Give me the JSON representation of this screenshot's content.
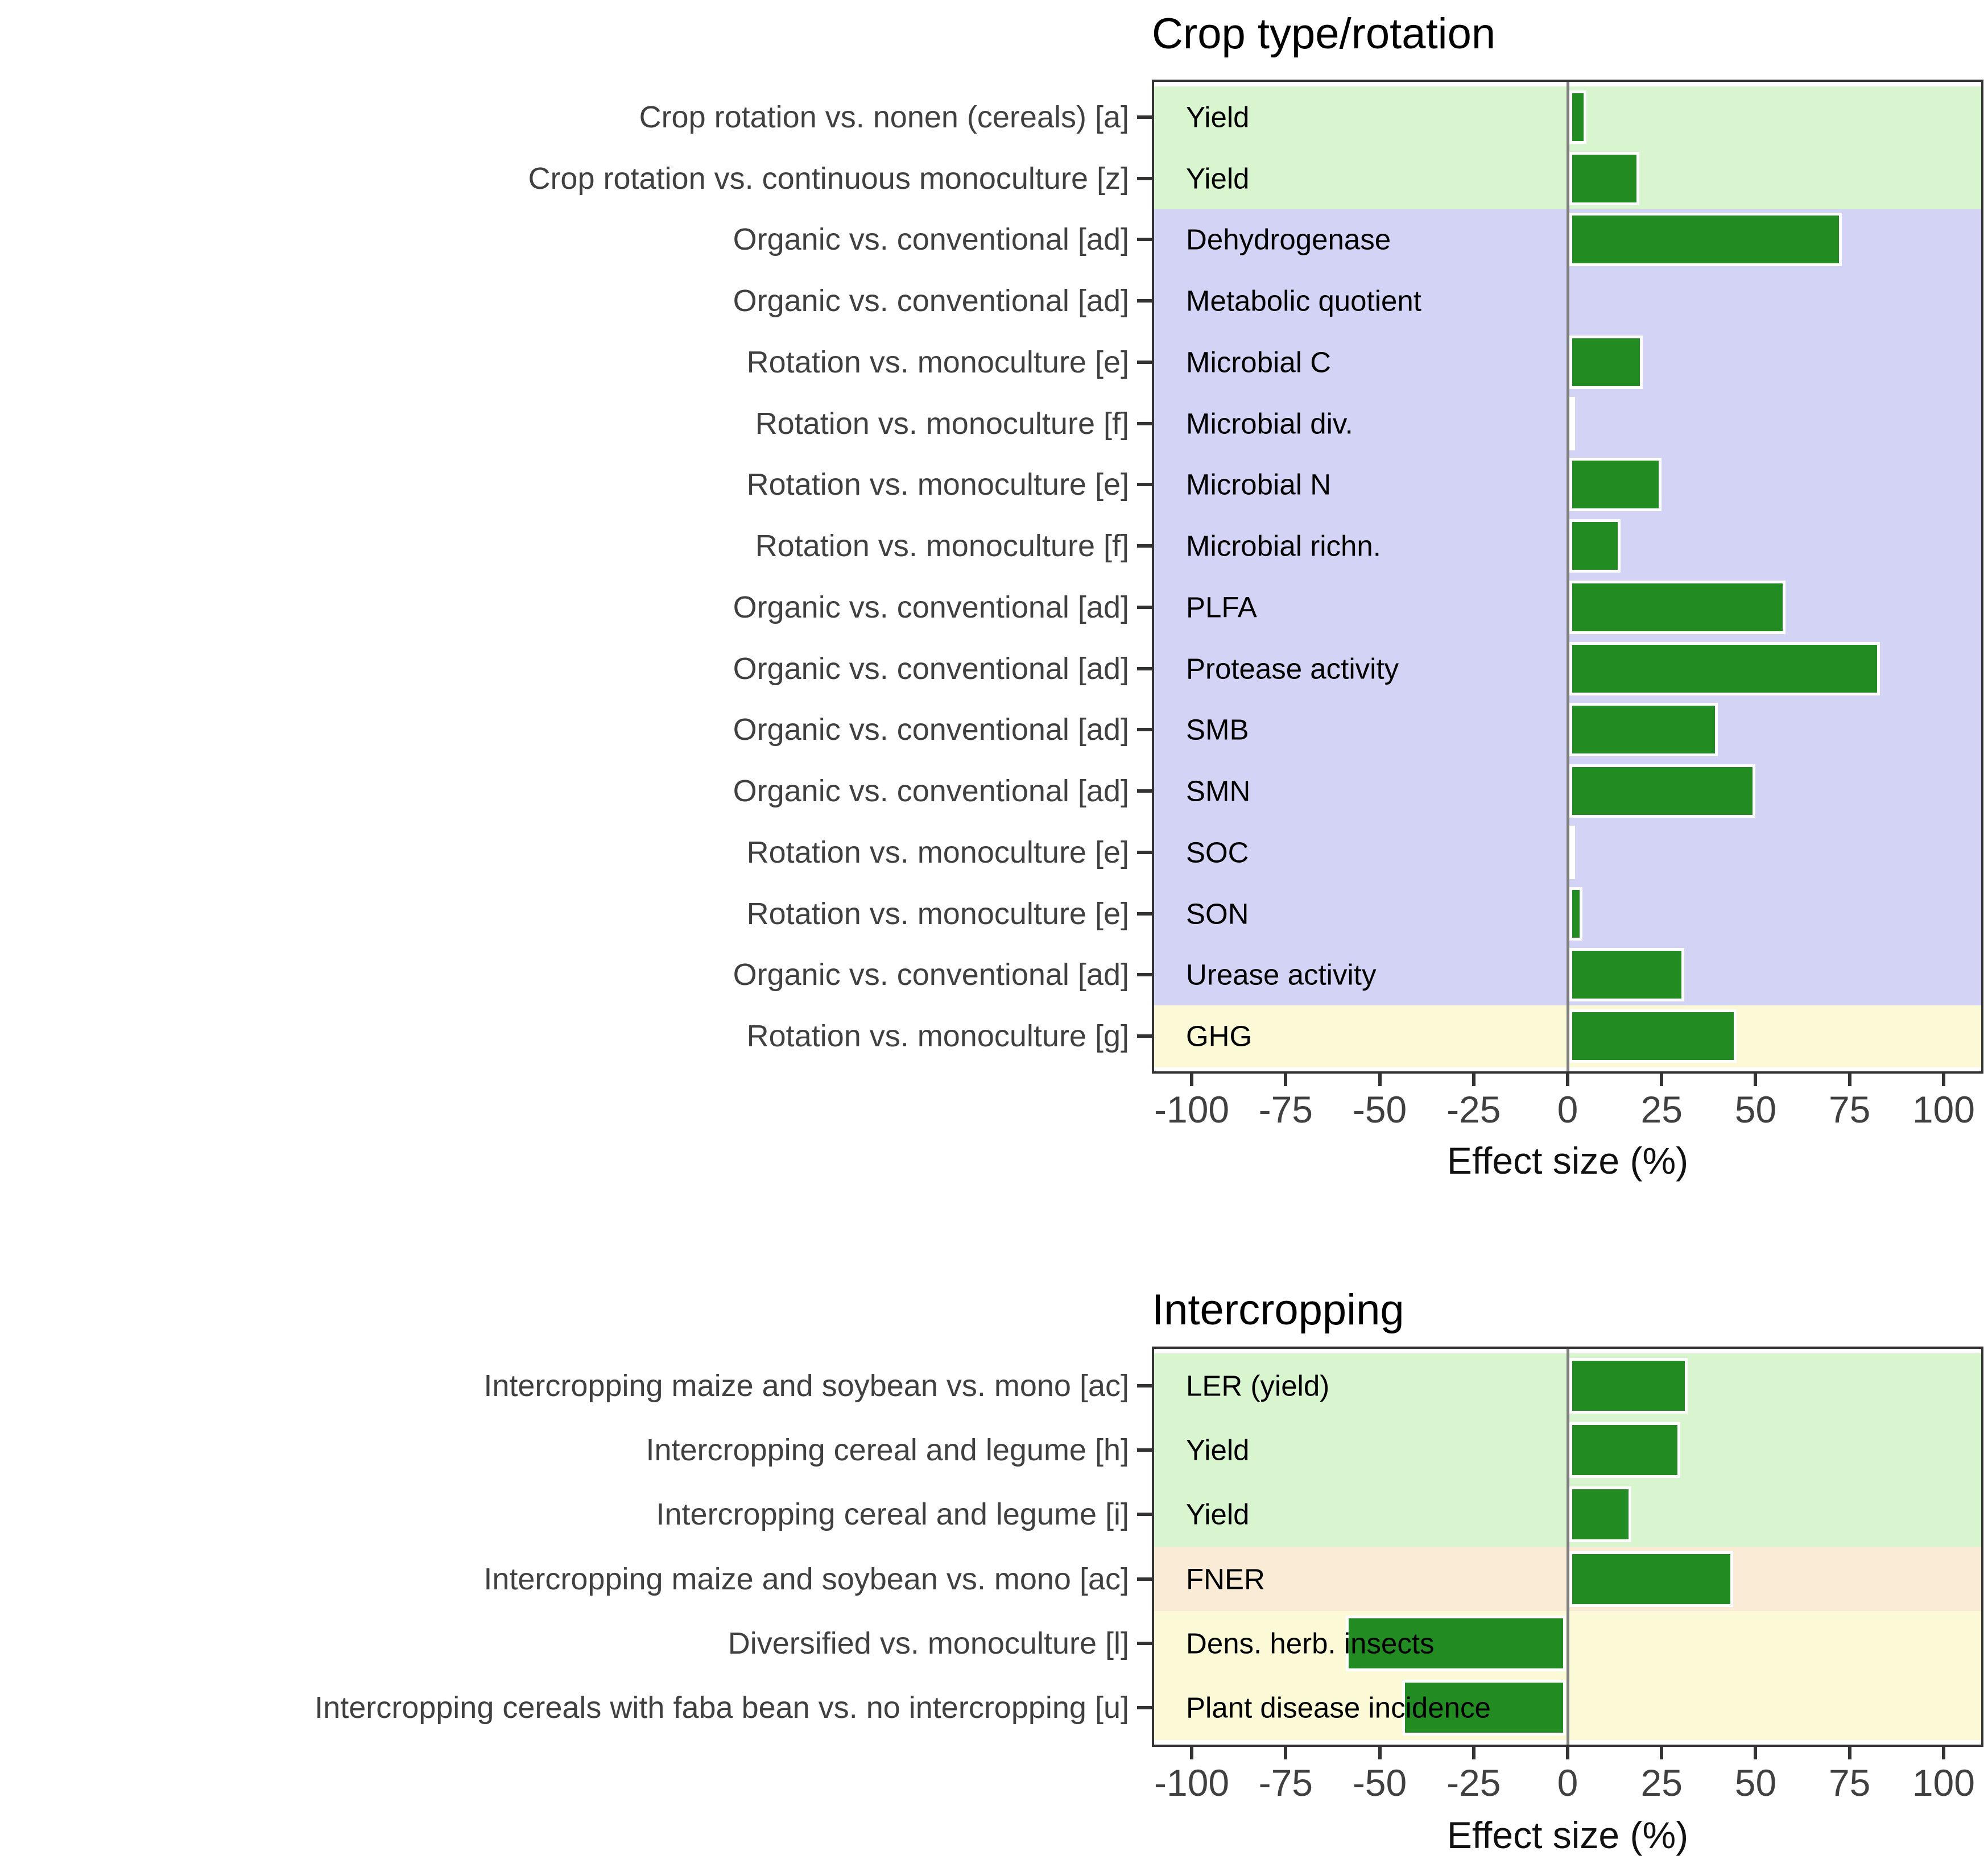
{
  "page": {
    "background": "#FFFFFF"
  },
  "chart_data": [
    {
      "type": "bar",
      "orientation": "horizontal",
      "title": "Crop type/rotation",
      "xlabel": "Effect size (%)",
      "xlim": [
        -110,
        110
      ],
      "xticks": [
        -100,
        -75,
        -50,
        -25,
        0,
        25,
        50,
        75,
        100
      ],
      "grid": "off",
      "legend": "none",
      "rows": [
        {
          "comparison": "Crop rotation vs. nonen (cereals) [a]",
          "metric": "Yield",
          "value": 5,
          "band": "green"
        },
        {
          "comparison": "Crop rotation vs. continuous monoculture [z]",
          "metric": "Yield",
          "value": 19,
          "band": "green"
        },
        {
          "comparison": "Organic vs. conventional [ad]",
          "metric": "Dehydrogenase",
          "value": 73,
          "band": "purple"
        },
        {
          "comparison": "Organic vs. conventional [ad]",
          "metric": "Metabolic quotient",
          "value": 0,
          "band": "purple"
        },
        {
          "comparison": "Rotation vs. monoculture [e]",
          "metric": "Microbial C",
          "value": 20,
          "band": "purple"
        },
        {
          "comparison": "Rotation vs. monoculture [f]",
          "metric": "Microbial div.",
          "value": 2,
          "band": "purple"
        },
        {
          "comparison": "Rotation vs. monoculture [e]",
          "metric": "Microbial N",
          "value": 25,
          "band": "purple"
        },
        {
          "comparison": "Rotation vs. monoculture [f]",
          "metric": "Microbial richn.",
          "value": 14,
          "band": "purple"
        },
        {
          "comparison": "Organic vs. conventional [ad]",
          "metric": "PLFA",
          "value": 58,
          "band": "purple"
        },
        {
          "comparison": "Organic vs. conventional [ad]",
          "metric": "Protease activity",
          "value": 83,
          "band": "purple"
        },
        {
          "comparison": "Organic vs. conventional [ad]",
          "metric": "SMB",
          "value": 40,
          "band": "purple"
        },
        {
          "comparison": "Organic vs. conventional [ad]",
          "metric": "SMN",
          "value": 50,
          "band": "purple"
        },
        {
          "comparison": "Rotation vs. monoculture [e]",
          "metric": "SOC",
          "value": 2,
          "band": "purple"
        },
        {
          "comparison": "Rotation vs. monoculture [e]",
          "metric": "SON",
          "value": 4,
          "band": "purple"
        },
        {
          "comparison": "Organic vs. conventional [ad]",
          "metric": "Urease activity",
          "value": 31,
          "band": "purple"
        },
        {
          "comparison": "Rotation vs. monoculture [g]",
          "metric": "GHG",
          "value": 45,
          "band": "yellow"
        }
      ]
    },
    {
      "type": "bar",
      "orientation": "horizontal",
      "title": "Intercropping",
      "xlabel": "Effect size (%)",
      "xlim": [
        -110,
        110
      ],
      "xticks": [
        -100,
        -75,
        -50,
        -25,
        0,
        25,
        50,
        75,
        100
      ],
      "grid": "off",
      "legend": "none",
      "rows": [
        {
          "comparison": "Intercropping maize and soybean vs. mono [ac]",
          "metric": "LER (yield)",
          "value": 32,
          "band": "green"
        },
        {
          "comparison": "Intercropping cereal and legume [h]",
          "metric": "Yield",
          "value": 30,
          "band": "green"
        },
        {
          "comparison": "Intercropping cereal and legume [i]",
          "metric": "Yield",
          "value": 17,
          "band": "green"
        },
        {
          "comparison": "Intercropping maize and soybean vs. mono [ac]",
          "metric": "FNER",
          "value": 44,
          "band": "orange"
        },
        {
          "comparison": "Diversified vs. monoculture [l]",
          "metric": "Dens. herb. insects",
          "value": -59,
          "band": "yellow"
        },
        {
          "comparison": "Intercropping cereals with faba bean vs. no intercropping [u]",
          "metric": "Plant disease incidence",
          "value": -44,
          "band": "yellow"
        }
      ]
    }
  ],
  "colors": {
    "bar_fill": "#228B22",
    "bar_stroke": "#FFFFFF",
    "band_green": "#D8F5D0",
    "band_purple": "#D3D3F6",
    "band_yellow": "#FCF9D7",
    "band_orange": "#FAEBD7",
    "zero_line": "#808080",
    "panel_border": "#333333",
    "axis_tick": "#333333",
    "axis_text": "#404040",
    "metric_text": "#000000",
    "title_text": "#000000"
  }
}
